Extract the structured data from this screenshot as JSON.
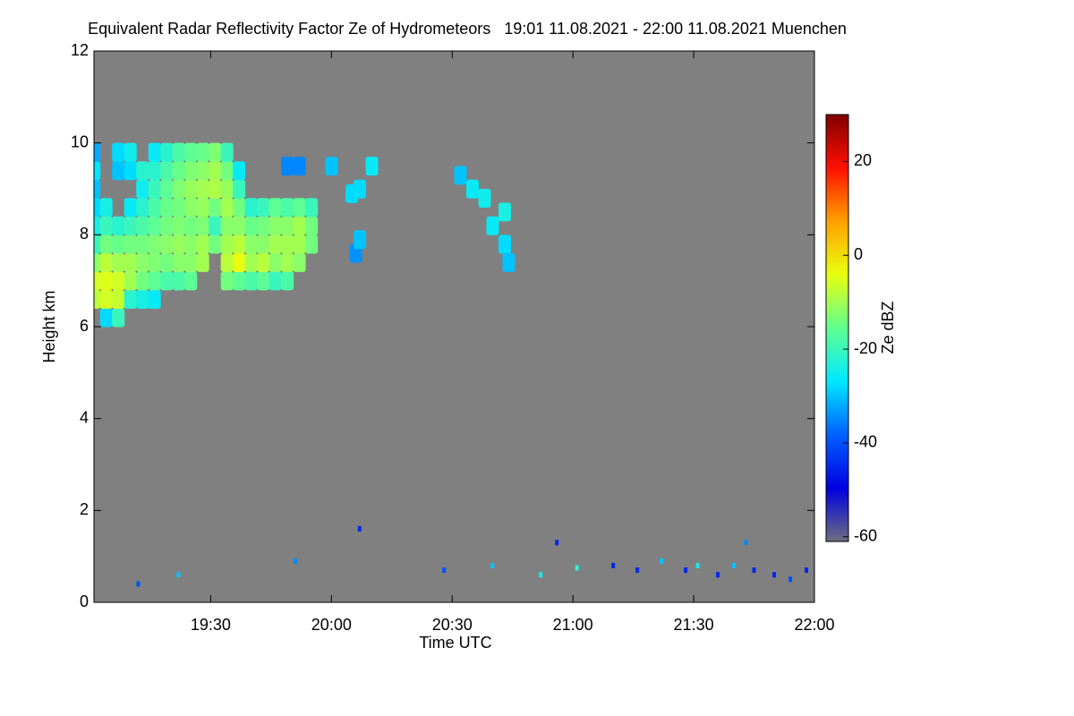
{
  "chart_data": {
    "type": "heatmap",
    "title": "Equivalent Radar Reflectivity Factor Ze of Hydrometeors   19:01 11.08.2021 - 22:00 11.08.2021 Muenchen",
    "x_label": "Time UTC",
    "y_label": "Height km",
    "colorbar_label": "Ze dBZ",
    "background": "#808080",
    "xlim": [
      1,
      180
    ],
    "xticks": [
      {
        "value": 30,
        "label": "19:30"
      },
      {
        "value": 60,
        "label": "20:00"
      },
      {
        "value": 90,
        "label": "20:30"
      },
      {
        "value": 120,
        "label": "21:00"
      },
      {
        "value": 150,
        "label": "21:30"
      },
      {
        "value": 180,
        "label": "22:00"
      }
    ],
    "ylim": [
      0,
      12
    ],
    "yticks": [
      0,
      2,
      4,
      6,
      8,
      10,
      12
    ],
    "zlim": [
      -61,
      30
    ],
    "zticks": [
      -60,
      -40,
      -20,
      0,
      20
    ],
    "colormap": [
      "#6e6e80",
      "#0000e0",
      "#0060ff",
      "#00e8ff",
      "#60ff90",
      "#e8ff10",
      "#ffa000",
      "#ff1000",
      "#800000"
    ],
    "columns": [
      {
        "x": 1,
        "y": [
          6.6,
          7.0,
          7.4,
          7.8,
          8.2,
          8.6,
          9.0,
          9.4,
          9.8
        ],
        "values": [
          -8,
          -6,
          -12,
          -20,
          -24,
          -28,
          -30,
          -27,
          -32
        ]
      },
      {
        "x": 4,
        "y": [
          6.2,
          6.6,
          7.0,
          7.4,
          7.8,
          8.2,
          8.6
        ],
        "values": [
          -28,
          -6,
          -5,
          -8,
          -14,
          -20,
          -24
        ]
      },
      {
        "x": 7,
        "y": [
          6.2,
          6.6,
          7.0,
          7.4,
          7.8,
          8.2,
          9.4,
          9.8
        ],
        "values": [
          -20,
          -7,
          -6,
          -10,
          -15,
          -22,
          -30,
          -28
        ]
      },
      {
        "x": 10,
        "y": [
          6.6,
          7.0,
          7.4,
          7.8,
          8.2,
          8.6,
          9.4,
          9.8
        ],
        "values": [
          -22,
          -10,
          -10,
          -14,
          -20,
          -26,
          -28,
          -25
        ]
      },
      {
        "x": 13,
        "y": [
          6.6,
          7.0,
          7.4,
          7.8,
          8.2,
          8.6,
          9.0,
          9.4
        ],
        "values": [
          -24,
          -14,
          -12,
          -14,
          -18,
          -22,
          -25,
          -22
        ]
      },
      {
        "x": 16,
        "y": [
          6.6,
          7.0,
          7.4,
          7.8,
          8.2,
          8.6,
          9.0,
          9.4,
          9.8
        ],
        "values": [
          -26,
          -16,
          -13,
          -13,
          -16,
          -18,
          -20,
          -22,
          -26
        ]
      },
      {
        "x": 19,
        "y": [
          7.0,
          7.4,
          7.8,
          8.2,
          8.6,
          9.0,
          9.4,
          9.8
        ],
        "values": [
          -18,
          -14,
          -12,
          -14,
          -15,
          -16,
          -18,
          -22
        ]
      },
      {
        "x": 22,
        "y": [
          7.0,
          7.4,
          7.8,
          8.2,
          8.6,
          9.0,
          9.4,
          9.8
        ],
        "values": [
          -18,
          -12,
          -11,
          -13,
          -14,
          -13,
          -15,
          -18
        ]
      },
      {
        "x": 25,
        "y": [
          7.0,
          7.4,
          7.8,
          8.2,
          8.6,
          9.0,
          9.4,
          9.8
        ],
        "values": [
          -16,
          -12,
          -12,
          -14,
          -12,
          -11,
          -13,
          -16
        ]
      },
      {
        "x": 28,
        "y": [
          7.4,
          7.8,
          8.2,
          8.6,
          9.0,
          9.4,
          9.8
        ],
        "values": [
          -10,
          -10,
          -13,
          -11,
          -10,
          -12,
          -15
        ]
      },
      {
        "x": 31,
        "y": [
          7.8,
          8.2,
          8.6,
          9.0,
          9.4,
          9.8
        ],
        "values": [
          -14,
          -20,
          -14,
          -9,
          -10,
          -13
        ]
      },
      {
        "x": 34,
        "y": [
          7.0,
          7.4,
          7.8,
          8.2,
          8.6,
          9.0,
          9.4,
          9.8
        ],
        "values": [
          -14,
          -8,
          -10,
          -12,
          -10,
          -11,
          -14,
          -20
        ]
      },
      {
        "x": 37,
        "y": [
          7.0,
          7.4,
          7.8,
          8.2,
          8.6,
          9.0,
          9.4
        ],
        "values": [
          -16,
          -4,
          -8,
          -12,
          -14,
          -20,
          -26
        ]
      },
      {
        "x": 40,
        "y": [
          7.0,
          7.4,
          7.8,
          8.2,
          8.6
        ],
        "values": [
          -18,
          -10,
          -12,
          -15,
          -22
        ]
      },
      {
        "x": 43,
        "y": [
          7.0,
          7.4,
          7.8,
          8.2,
          8.6
        ],
        "values": [
          -16,
          -8,
          -12,
          -14,
          -20
        ]
      },
      {
        "x": 46,
        "y": [
          7.0,
          7.4,
          7.8,
          8.2,
          8.6
        ],
        "values": [
          -20,
          -12,
          -10,
          -12,
          -16
        ]
      },
      {
        "x": 49,
        "y": [
          7.0,
          7.4,
          7.8,
          8.2,
          8.6
        ],
        "values": [
          -18,
          -10,
          -10,
          -12,
          -18
        ]
      },
      {
        "x": 52,
        "y": [
          7.4,
          7.8,
          8.2,
          8.6
        ],
        "values": [
          -12,
          -10,
          -10,
          -16
        ]
      },
      {
        "x": 55,
        "y": [
          7.8,
          8.2,
          8.6
        ],
        "values": [
          -14,
          -14,
          -20
        ]
      },
      {
        "x": 49,
        "y": [
          9.5
        ],
        "values": [
          -35
        ]
      },
      {
        "x": 52,
        "y": [
          9.5
        ],
        "values": [
          -35
        ]
      },
      {
        "x": 60,
        "y": [
          9.5
        ],
        "values": [
          -30
        ]
      },
      {
        "x": 65,
        "y": [
          8.9
        ],
        "values": [
          -28
        ]
      },
      {
        "x": 66,
        "y": [
          7.6
        ],
        "values": [
          -34
        ]
      },
      {
        "x": 67,
        "y": [
          7.9,
          9.0
        ],
        "values": [
          -30,
          -28
        ]
      },
      {
        "x": 70,
        "y": [
          9.5
        ],
        "values": [
          -26
        ]
      },
      {
        "x": 92,
        "y": [
          9.3
        ],
        "values": [
          -30
        ]
      },
      {
        "x": 95,
        "y": [
          9.0
        ],
        "values": [
          -26
        ]
      },
      {
        "x": 98,
        "y": [
          8.8
        ],
        "values": [
          -25
        ]
      },
      {
        "x": 100,
        "y": [
          8.2
        ],
        "values": [
          -26
        ]
      },
      {
        "x": 103,
        "y": [
          7.8,
          8.5
        ],
        "values": [
          -28,
          -24
        ]
      },
      {
        "x": 104,
        "y": [
          7.4
        ],
        "values": [
          -30
        ]
      }
    ],
    "clutter": {
      "x": [
        12,
        22,
        51,
        67,
        88,
        100,
        112,
        116,
        121,
        130,
        136,
        142,
        148,
        151,
        156,
        160,
        163,
        165,
        170,
        174,
        178
      ],
      "y": [
        0.4,
        0.6,
        0.9,
        1.6,
        0.7,
        0.8,
        0.6,
        1.3,
        0.75,
        0.8,
        0.7,
        0.9,
        0.7,
        0.8,
        0.6,
        0.8,
        1.3,
        0.7,
        0.6,
        0.5,
        0.7
      ],
      "values": [
        -40,
        -30,
        -35,
        -45,
        -40,
        -30,
        -25,
        -45,
        -22,
        -45,
        -45,
        -30,
        -45,
        -25,
        -45,
        -30,
        -35,
        -45,
        -45,
        -40,
        -45
      ]
    }
  }
}
